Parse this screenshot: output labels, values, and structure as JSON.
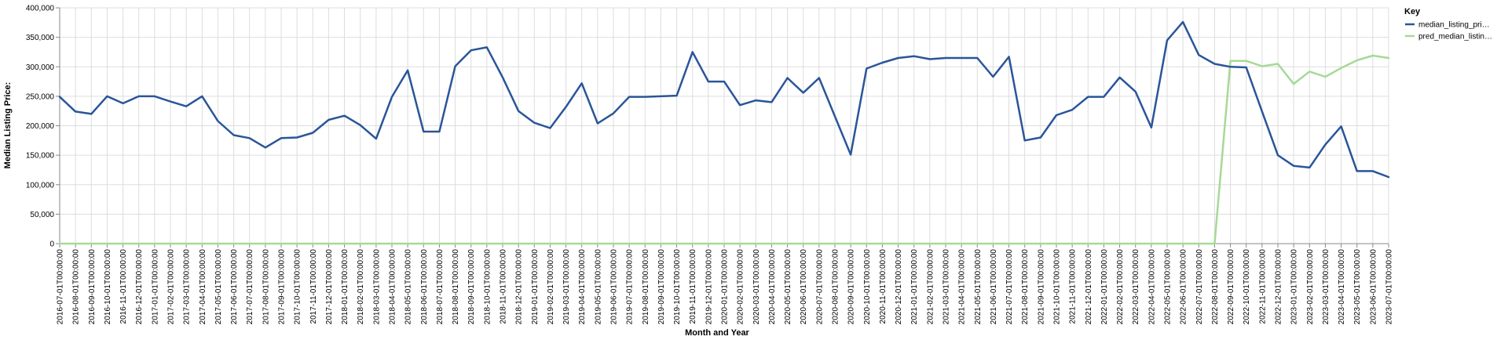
{
  "chart_data": {
    "type": "line",
    "xlabel": "Month and Year",
    "ylabel": "Median Listing Price:",
    "ylim": [
      0,
      400000
    ],
    "yticks": [
      "0",
      "50,000",
      "100,000",
      "150,000",
      "200,000",
      "250,000",
      "300,000",
      "350,000",
      "400,000"
    ],
    "grid": true,
    "legend": {
      "title": "Key",
      "placement": "top-right"
    },
    "x": [
      "2016-07-01T00:00:00",
      "2016-08-01T00:00:00",
      "2016-09-01T00:00:00",
      "2016-10-01T00:00:00",
      "2016-11-01T00:00:00",
      "2016-12-01T00:00:00",
      "2017-01-01T00:00:00",
      "2017-02-01T00:00:00",
      "2017-03-01T00:00:00",
      "2017-04-01T00:00:00",
      "2017-05-01T00:00:00",
      "2017-06-01T00:00:00",
      "2017-07-01T00:00:00",
      "2017-08-01T00:00:00",
      "2017-09-01T00:00:00",
      "2017-10-01T00:00:00",
      "2017-11-01T00:00:00",
      "2017-12-01T00:00:00",
      "2018-01-01T00:00:00",
      "2018-02-01T00:00:00",
      "2018-03-01T00:00:00",
      "2018-04-01T00:00:00",
      "2018-05-01T00:00:00",
      "2018-06-01T00:00:00",
      "2018-07-01T00:00:00",
      "2018-08-01T00:00:00",
      "2018-09-01T00:00:00",
      "2018-10-01T00:00:00",
      "2018-11-01T00:00:00",
      "2018-12-01T00:00:00",
      "2019-01-01T00:00:00",
      "2019-02-01T00:00:00",
      "2019-03-01T00:00:00",
      "2019-04-01T00:00:00",
      "2019-05-01T00:00:00",
      "2019-06-01T00:00:00",
      "2019-07-01T00:00:00",
      "2019-08-01T00:00:00",
      "2019-09-01T00:00:00",
      "2019-10-01T00:00:00",
      "2019-11-01T00:00:00",
      "2019-12-01T00:00:00",
      "2020-01-01T00:00:00",
      "2020-02-01T00:00:00",
      "2020-03-01T00:00:00",
      "2020-04-01T00:00:00",
      "2020-05-01T00:00:00",
      "2020-06-01T00:00:00",
      "2020-07-01T00:00:00",
      "2020-08-01T00:00:00",
      "2020-09-01T00:00:00",
      "2020-10-01T00:00:00",
      "2020-11-01T00:00:00",
      "2020-12-01T00:00:00",
      "2021-01-01T00:00:00",
      "2021-02-01T00:00:00",
      "2021-03-01T00:00:00",
      "2021-04-01T00:00:00",
      "2021-05-01T00:00:00",
      "2021-06-01T00:00:00",
      "2021-07-01T00:00:00",
      "2021-08-01T00:00:00",
      "2021-09-01T00:00:00",
      "2021-10-01T00:00:00",
      "2021-11-01T00:00:00",
      "2021-12-01T00:00:00",
      "2022-01-01T00:00:00",
      "2022-02-01T00:00:00",
      "2022-03-01T00:00:00",
      "2022-04-01T00:00:00",
      "2022-05-01T00:00:00",
      "2022-06-01T00:00:00",
      "2022-07-01T00:00:00",
      "2022-08-01T00:00:00",
      "2022-09-01T00:00:00",
      "2022-10-01T00:00:00",
      "2022-11-01T00:00:00",
      "2022-12-01T00:00:00",
      "2023-01-01T00:00:00",
      "2023-02-01T00:00:00",
      "2023-03-01T00:00:00",
      "2023-04-01T00:00:00",
      "2023-05-01T00:00:00",
      "2023-06-01T00:00:00",
      "2023-07-01T00:00:00"
    ],
    "series": [
      {
        "name": "median_listing_pri…",
        "color": "#2a5599",
        "values": [
          249000,
          224000,
          220000,
          250000,
          238000,
          250000,
          250000,
          241000,
          233000,
          250000,
          208000,
          184000,
          179000,
          163000,
          179000,
          180000,
          188000,
          210000,
          217000,
          201000,
          178000,
          249000,
          294000,
          190000,
          190000,
          301000,
          328000,
          333000,
          282000,
          225000,
          205000,
          196000,
          232000,
          272000,
          204000,
          221000,
          249000,
          249000,
          250000,
          251000,
          325000,
          275000,
          275000,
          235000,
          243000,
          240000,
          281000,
          256000,
          281000,
          216000,
          151000,
          297000,
          307000,
          315000,
          318000,
          313000,
          315000,
          315000,
          315000,
          283000,
          317000,
          175000,
          180000,
          218000,
          227000,
          249000,
          249000,
          282000,
          258000,
          197000,
          345000,
          376000,
          320000,
          305000,
          300000,
          299000,
          224000,
          150000,
          132000,
          129000,
          168000,
          199000,
          123000,
          123000,
          113000
        ]
      },
      {
        "name": "pred_median_listin…",
        "color": "#a6d996",
        "values": [
          0,
          0,
          0,
          0,
          0,
          0,
          0,
          0,
          0,
          0,
          0,
          0,
          0,
          0,
          0,
          0,
          0,
          0,
          0,
          0,
          0,
          0,
          0,
          0,
          0,
          0,
          0,
          0,
          0,
          0,
          0,
          0,
          0,
          0,
          0,
          0,
          0,
          0,
          0,
          0,
          0,
          0,
          0,
          0,
          0,
          0,
          0,
          0,
          0,
          0,
          0,
          0,
          0,
          0,
          0,
          0,
          0,
          0,
          0,
          0,
          0,
          0,
          0,
          0,
          0,
          0,
          0,
          0,
          0,
          0,
          0,
          0,
          0,
          0,
          310000,
          310000,
          301000,
          305000,
          271000,
          292000,
          283000,
          298000,
          311000,
          319000,
          315000
        ]
      }
    ]
  }
}
